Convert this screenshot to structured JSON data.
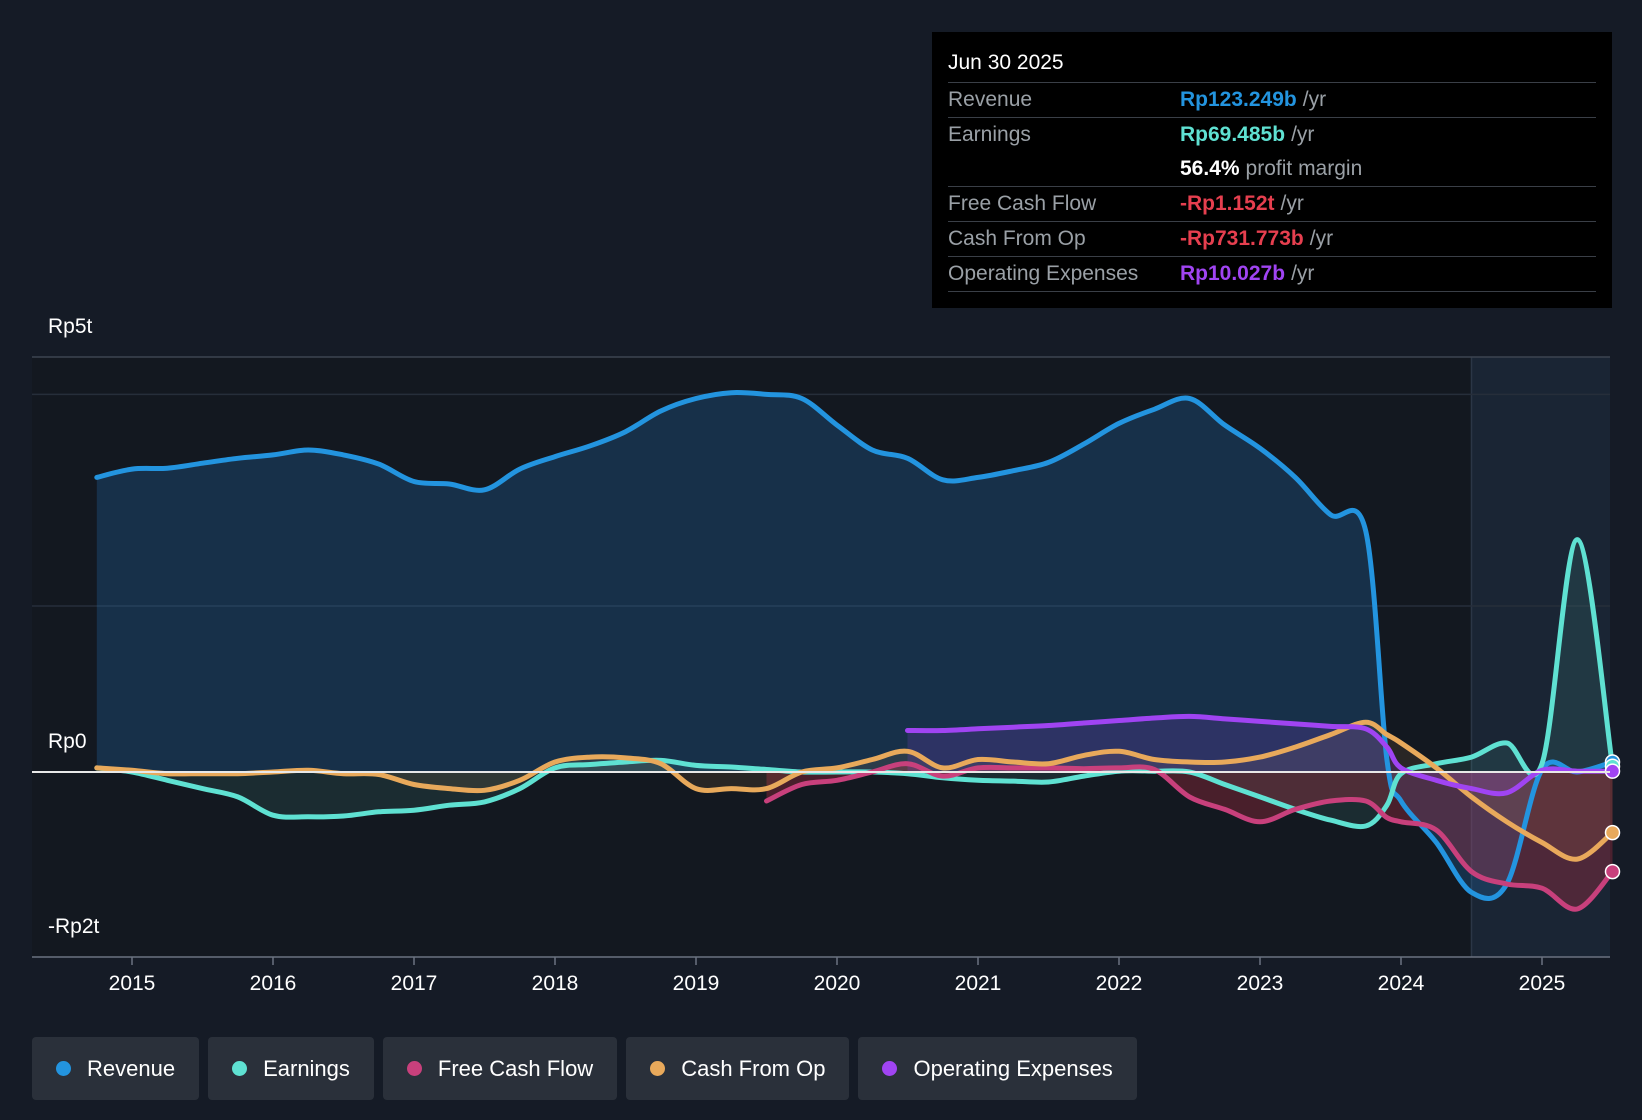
{
  "chart_data": {
    "type": "line",
    "title": "",
    "x_ticks": [
      "2015",
      "2016",
      "2017",
      "2018",
      "2019",
      "2020",
      "2021",
      "2022",
      "2023",
      "2024",
      "2025"
    ],
    "y_ticks": [
      {
        "value": 5,
        "label": "Rp5t"
      },
      {
        "value": 0,
        "label": "Rp0"
      },
      {
        "value": -2,
        "label": "-Rp2t"
      }
    ],
    "ylim": [
      -2,
      5
    ],
    "xlim": [
      2014.3,
      2025.5
    ],
    "unit": "trillion Rp",
    "forecast_start": 2024.5,
    "series": [
      {
        "name": "Revenue",
        "color": "#2394df",
        "fill": true,
        "x": [
          2014.75,
          2015.0,
          2015.25,
          2015.5,
          2015.75,
          2016.0,
          2016.25,
          2016.5,
          2016.75,
          2017.0,
          2017.25,
          2017.5,
          2017.75,
          2018.0,
          2018.25,
          2018.5,
          2018.75,
          2019.0,
          2019.25,
          2019.5,
          2019.75,
          2020.0,
          2020.25,
          2020.5,
          2020.75,
          2021.0,
          2021.25,
          2021.5,
          2021.75,
          2022.0,
          2022.25,
          2022.5,
          2022.75,
          2023.0,
          2023.25,
          2023.5,
          2023.75,
          2023.9,
          2024.0,
          2024.25,
          2024.5,
          2024.75,
          2025.0,
          2025.25,
          2025.5
        ],
        "values": [
          3.55,
          3.65,
          3.66,
          3.72,
          3.78,
          3.82,
          3.88,
          3.82,
          3.71,
          3.5,
          3.47,
          3.4,
          3.65,
          3.8,
          3.93,
          4.1,
          4.35,
          4.5,
          4.57,
          4.55,
          4.5,
          4.18,
          3.88,
          3.78,
          3.52,
          3.55,
          3.63,
          3.73,
          3.95,
          4.2,
          4.37,
          4.5,
          4.18,
          3.9,
          3.55,
          3.1,
          2.9,
          0.15,
          -0.35,
          -0.85,
          -1.45,
          -1.35,
          0.03,
          0.0,
          0.12
        ]
      },
      {
        "name": "Earnings",
        "color": "#5fe1d2",
        "fill": true,
        "x": [
          2014.75,
          2015.0,
          2015.25,
          2015.5,
          2015.75,
          2016.0,
          2016.25,
          2016.5,
          2016.75,
          2017.0,
          2017.25,
          2017.5,
          2017.75,
          2018.0,
          2018.25,
          2018.5,
          2018.75,
          2019.0,
          2019.25,
          2019.5,
          2019.75,
          2020.0,
          2020.25,
          2020.5,
          2020.75,
          2021.0,
          2021.25,
          2021.5,
          2021.75,
          2022.0,
          2022.25,
          2022.5,
          2022.75,
          2023.0,
          2023.25,
          2023.5,
          2023.75,
          2023.9,
          2024.0,
          2024.25,
          2024.5,
          2024.75,
          2025.0,
          2025.25,
          2025.5
        ],
        "values": [
          0.05,
          0.0,
          -0.1,
          -0.2,
          -0.3,
          -0.52,
          -0.54,
          -0.53,
          -0.48,
          -0.46,
          -0.4,
          -0.36,
          -0.2,
          0.05,
          0.09,
          0.12,
          0.14,
          0.08,
          0.06,
          0.03,
          0.0,
          0.0,
          0.0,
          -0.02,
          -0.07,
          -0.1,
          -0.11,
          -0.12,
          -0.05,
          0.01,
          0.01,
          0.0,
          -0.15,
          -0.3,
          -0.45,
          -0.58,
          -0.65,
          -0.4,
          -0.02,
          0.1,
          0.18,
          0.35,
          0.1,
          2.8,
          0.07
        ]
      },
      {
        "name": "Free Cash Flow",
        "color": "#c8407c",
        "fill": true,
        "x": [
          2019.5,
          2019.75,
          2020.0,
          2020.25,
          2020.5,
          2020.75,
          2021.0,
          2021.25,
          2021.5,
          2021.75,
          2022.0,
          2022.25,
          2022.5,
          2022.75,
          2023.0,
          2023.25,
          2023.5,
          2023.75,
          2023.9,
          2024.0,
          2024.25,
          2024.5,
          2024.75,
          2025.0,
          2025.25,
          2025.5
        ],
        "values": [
          -0.35,
          -0.15,
          -0.1,
          0.0,
          0.1,
          -0.05,
          0.05,
          0.05,
          0.05,
          0.04,
          0.05,
          0.03,
          -0.3,
          -0.45,
          -0.6,
          -0.45,
          -0.35,
          -0.35,
          -0.55,
          -0.6,
          -0.7,
          -1.2,
          -1.35,
          -1.4,
          -1.65,
          -1.2
        ]
      },
      {
        "name": "Cash From Op",
        "color": "#e8a95b",
        "fill": true,
        "x": [
          2014.75,
          2015.0,
          2015.25,
          2015.5,
          2015.75,
          2016.0,
          2016.25,
          2016.5,
          2016.75,
          2017.0,
          2017.25,
          2017.5,
          2017.75,
          2018.0,
          2018.25,
          2018.5,
          2018.75,
          2019.0,
          2019.25,
          2019.5,
          2019.75,
          2020.0,
          2020.25,
          2020.5,
          2020.75,
          2021.0,
          2021.25,
          2021.5,
          2021.75,
          2022.0,
          2022.25,
          2022.5,
          2022.75,
          2023.0,
          2023.25,
          2023.5,
          2023.75,
          2023.9,
          2024.0,
          2024.25,
          2024.5,
          2024.75,
          2025.0,
          2025.25,
          2025.5
        ],
        "values": [
          0.05,
          0.02,
          -0.02,
          -0.02,
          -0.02,
          0.0,
          0.02,
          -0.02,
          -0.03,
          -0.15,
          -0.2,
          -0.22,
          -0.1,
          0.12,
          0.18,
          0.17,
          0.1,
          -0.2,
          -0.2,
          -0.2,
          0.0,
          0.05,
          0.15,
          0.25,
          0.05,
          0.15,
          0.12,
          0.1,
          0.2,
          0.25,
          0.15,
          0.12,
          0.12,
          0.18,
          0.3,
          0.45,
          0.6,
          0.45,
          0.35,
          0.05,
          -0.3,
          -0.6,
          -0.85,
          -1.05,
          -0.73
        ]
      },
      {
        "name": "Operating Expenses",
        "color": "#a044f2",
        "fill": true,
        "x": [
          2020.5,
          2020.75,
          2021.0,
          2021.25,
          2021.5,
          2021.75,
          2022.0,
          2022.25,
          2022.5,
          2022.75,
          2023.0,
          2023.25,
          2023.5,
          2023.75,
          2023.9,
          2024.0,
          2024.25,
          2024.5,
          2024.75,
          2025.0,
          2025.25,
          2025.5
        ],
        "values": [
          0.5,
          0.5,
          0.52,
          0.54,
          0.56,
          0.59,
          0.62,
          0.65,
          0.67,
          0.64,
          0.61,
          0.58,
          0.55,
          0.52,
          0.3,
          0.05,
          -0.1,
          -0.2,
          -0.25,
          0.02,
          0.01,
          0.01
        ]
      }
    ]
  },
  "tooltip": {
    "date": "Jun 30 2025",
    "rows": [
      {
        "label": "Revenue",
        "value": "Rp123.249b",
        "unit": "/yr",
        "color": "#2394df"
      },
      {
        "label": "Earnings",
        "value": "Rp69.485b",
        "unit": "/yr",
        "color": "#5fe1d2"
      },
      {
        "label": "",
        "value": "56.4%",
        "unit": "profit margin",
        "color": "#ffffff"
      },
      {
        "label": "Free Cash Flow",
        "value": "-Rp1.152t",
        "unit": "/yr",
        "color": "#e63f4f"
      },
      {
        "label": "Cash From Op",
        "value": "-Rp731.773b",
        "unit": "/yr",
        "color": "#e63f4f"
      },
      {
        "label": "Operating Expenses",
        "value": "Rp10.027b",
        "unit": "/yr",
        "color": "#a044f2"
      }
    ]
  },
  "legend": [
    {
      "label": "Revenue",
      "color": "#2394df"
    },
    {
      "label": "Earnings",
      "color": "#5fe1d2"
    },
    {
      "label": "Free Cash Flow",
      "color": "#c8407c"
    },
    {
      "label": "Cash From Op",
      "color": "#e8a95b"
    },
    {
      "label": "Operating Expenses",
      "color": "#a044f2"
    }
  ]
}
